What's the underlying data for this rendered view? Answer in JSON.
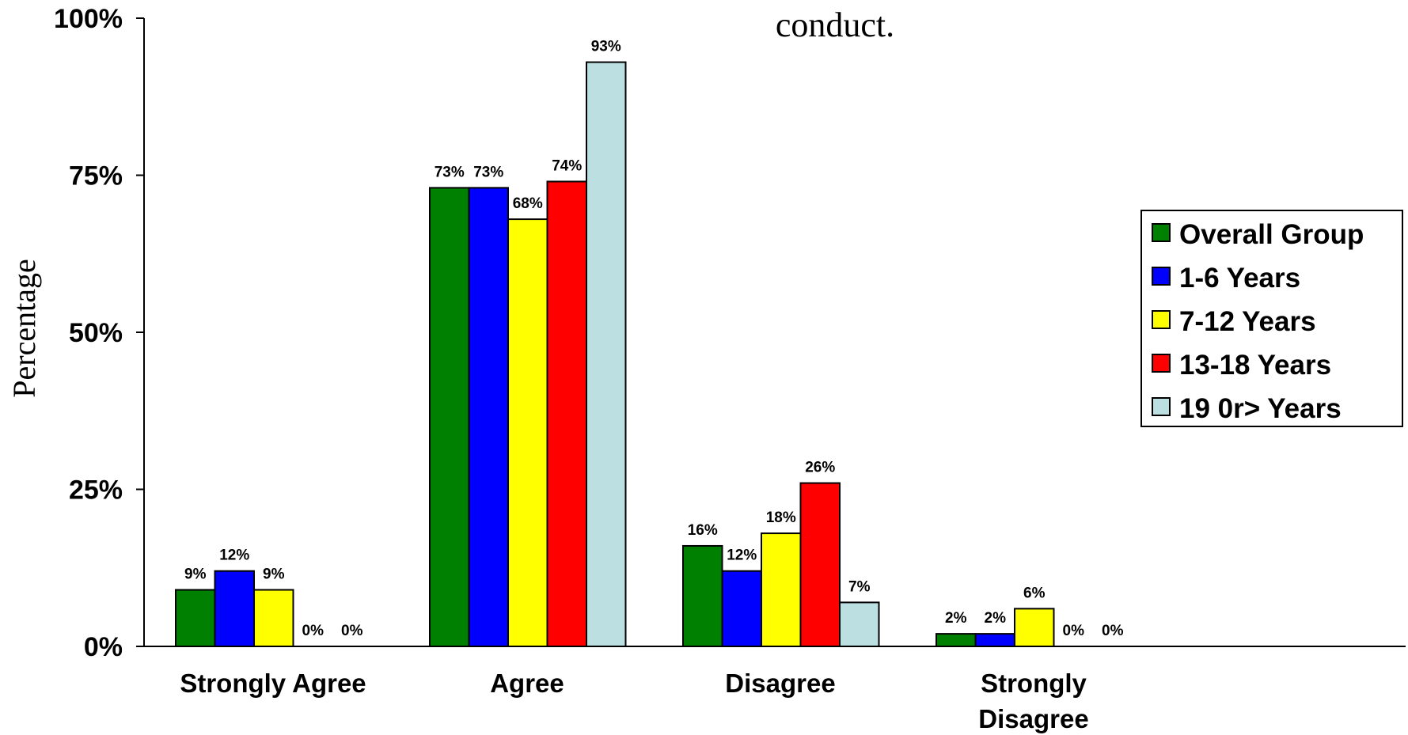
{
  "chart_data": {
    "type": "bar",
    "title": "conduct.",
    "xlabel": "",
    "ylabel": "Percentage",
    "ylim": [
      0,
      100
    ],
    "yticks": [
      "0%",
      "25%",
      "50%",
      "75%",
      "100%"
    ],
    "categories": [
      "Strongly Agree",
      "Agree",
      "Disagree",
      "Strongly Disagree"
    ],
    "series": [
      {
        "name": "Overall Group",
        "color": "#008000",
        "values": [
          9,
          73,
          16,
          2
        ],
        "labels": [
          "9%",
          "73%",
          "16%",
          "2%"
        ]
      },
      {
        "name": "1-6 Years",
        "color": "#0000FF",
        "values": [
          12,
          73,
          12,
          2
        ],
        "labels": [
          "12%",
          "73%",
          "12%",
          "2%"
        ]
      },
      {
        "name": "7-12 Years",
        "color": "#FFFF00",
        "values": [
          9,
          68,
          18,
          6
        ],
        "labels": [
          "9%",
          "68%",
          "18%",
          "6%"
        ]
      },
      {
        "name": "13-18 Years",
        "color": "#FF0000",
        "values": [
          0,
          74,
          26,
          0
        ],
        "labels": [
          "0%",
          "74%",
          "26%",
          "0%"
        ]
      },
      {
        "name": "19 0r> Years",
        "color": "#BCE0E1",
        "values": [
          0,
          93,
          7,
          0
        ],
        "labels": [
          "0%",
          "93%",
          "7%",
          "0%"
        ]
      }
    ],
    "grid": false,
    "legend_position": "right"
  }
}
